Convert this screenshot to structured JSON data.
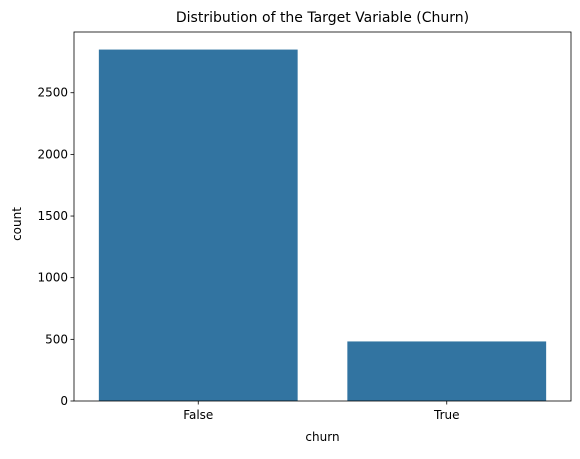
{
  "chart_data": {
    "type": "bar",
    "title": "Distribution of the Target Variable (Churn)",
    "xlabel": "churn",
    "ylabel": "count",
    "categories": [
      "False",
      "True"
    ],
    "values": [
      2850,
      483
    ],
    "ylim": [
      0,
      2992.5
    ],
    "yticks": [
      0,
      500,
      1000,
      1500,
      2000,
      2500
    ],
    "grid": false,
    "legend": "none",
    "bar_color": "#3274a1"
  }
}
